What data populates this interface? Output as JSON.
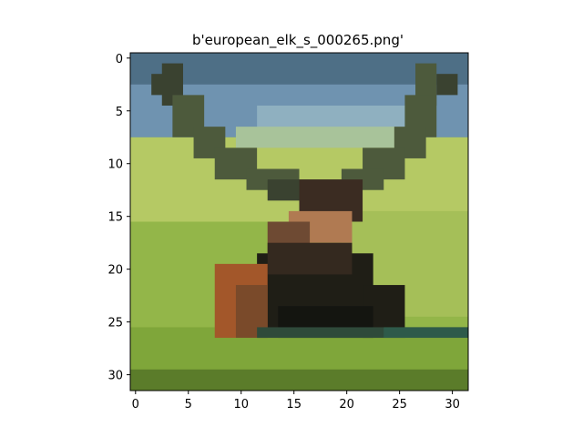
{
  "figure": {
    "title": "b'european_elk_s_000265.png'"
  },
  "image": {
    "subject": "elk with antlers lying in green grass",
    "grid_width": 32,
    "grid_height": 32,
    "palette": {
      "sky_light": "#6f93b0",
      "sky_dark": "#4e6f86",
      "grass_light": "#b5c964",
      "grass": "#93b649",
      "grass_dark": "#5b7c2a",
      "grass_shadow": "#3e5e32",
      "antler": "#4d5a3c",
      "antler_dark": "#3a4230",
      "head": "#3b2c22",
      "neck_tan": "#b07a52",
      "body_dark": "#1f1e16",
      "flank_orange": "#a3572a",
      "shadow_band": "#2f4a3a"
    }
  },
  "axes": {
    "x_ticks": [
      "0",
      "5",
      "10",
      "15",
      "20",
      "25",
      "30"
    ],
    "y_ticks": [
      "0",
      "5",
      "10",
      "15",
      "20",
      "25",
      "30"
    ]
  }
}
